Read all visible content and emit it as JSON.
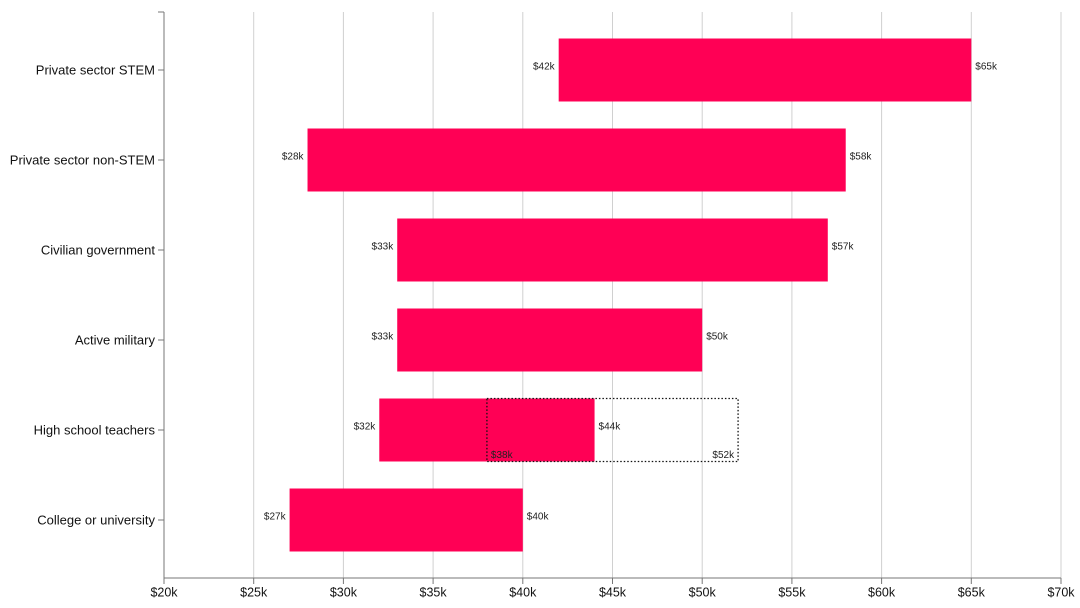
{
  "chart_data": {
    "type": "bar",
    "subtype": "floating-range",
    "bar_color": "#ff0055",
    "categories": [
      "Private sector STEM",
      "Private sector non-STEM",
      "Civilian government",
      "Active military",
      "High school teachers",
      "College or university"
    ],
    "ranges": [
      {
        "low": 42,
        "high": 65,
        "low_label": "$42k",
        "high_label": "$65k"
      },
      {
        "low": 28,
        "high": 58,
        "low_label": "$28k",
        "high_label": "$58k"
      },
      {
        "low": 33,
        "high": 57,
        "low_label": "$33k",
        "high_label": "$57k"
      },
      {
        "low": 33,
        "high": 50,
        "low_label": "$33k",
        "high_label": "$50k"
      },
      {
        "low": 32,
        "high": 44,
        "low_label": "$32k",
        "high_label": "$44k"
      },
      {
        "low": 27,
        "high": 40,
        "low_label": "$27k",
        "high_label": "$40k"
      }
    ],
    "overlay": {
      "category": "High school teachers",
      "low": 38,
      "high": 52,
      "low_label": "$38k",
      "high_label": "$52k",
      "style": "dotted outline"
    },
    "xlim": [
      20,
      70
    ],
    "x_ticks": [
      20,
      25,
      30,
      35,
      40,
      45,
      50,
      55,
      60,
      65,
      70
    ],
    "x_tick_labels": [
      "$20k",
      "$25k",
      "$30k",
      "$35k",
      "$40k",
      "$45k",
      "$50k",
      "$55k",
      "$60k",
      "$65k",
      "$70k"
    ],
    "grid": "vertical",
    "xlabel": "",
    "ylabel": "",
    "title": ""
  }
}
